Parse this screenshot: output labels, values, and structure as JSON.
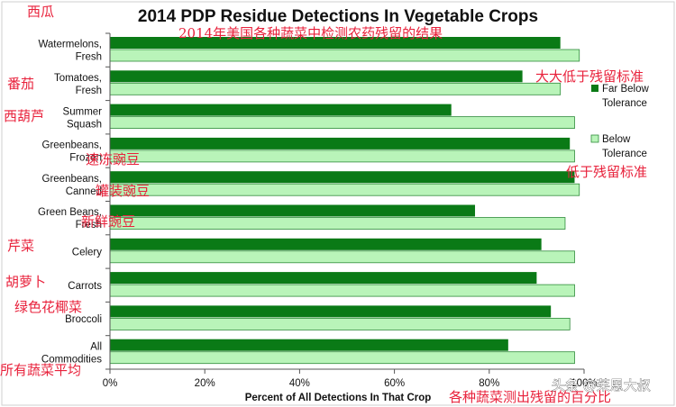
{
  "chart_data": {
    "type": "bar",
    "orientation": "horizontal",
    "title": "2014 PDP Residue Detections In Vegetable Crops",
    "xlabel": "Percent of All Detections In That Crop",
    "ylabel": "",
    "xlim": [
      0,
      100
    ],
    "x_ticks": [
      "0%",
      "20%",
      "40%",
      "60%",
      "80%",
      "100%"
    ],
    "categories": [
      [
        "Watermelons,",
        "Fresh"
      ],
      [
        "Tomatoes,",
        "Fresh"
      ],
      [
        "Summer",
        "Squash"
      ],
      [
        "Greenbeans,",
        "Frozen"
      ],
      [
        "Greenbeans,",
        "Canned"
      ],
      [
        "Green Beans,",
        "Fresh"
      ],
      [
        "Celery"
      ],
      [
        "Carrots"
      ],
      [
        "Broccoli"
      ],
      [
        "All",
        "Commodities"
      ]
    ],
    "series": [
      {
        "name": "Far Below Tolerance",
        "legend_lines": [
          "Far Below",
          "Tolerance"
        ],
        "color": "#0a7a16",
        "values": [
          95,
          87,
          72,
          97,
          98,
          77,
          91,
          90,
          93,
          84
        ]
      },
      {
        "name": "Below Tolerance",
        "legend_lines": [
          "Below",
          "Tolerance"
        ],
        "color": "#b9f4b9",
        "values": [
          99,
          95,
          98,
          98,
          99,
          96,
          98,
          98,
          97,
          98
        ]
      }
    ],
    "grid": false,
    "legend_position": "right"
  },
  "annotations": {
    "subtitle_cn": "2014年美国各种蔬菜中检测农药残留的结果",
    "legend1_cn": "大大低于残留标准",
    "legend2_cn": "低于残留标准",
    "xlabel_cn": "各种蔬菜测出残留的百分比",
    "labels_cn": [
      "西瓜",
      "番茄",
      "西葫芦",
      "速冻豌豆",
      "罐装豌豆",
      "新鲜豌豆",
      "芹菜",
      "胡萝卜",
      "绿色花椰菜",
      "所有蔬菜平均"
    ]
  },
  "watermark": "头条 @莱恩大叔",
  "colors": {
    "dark": "#0a7a16",
    "light": "#b9f4b9",
    "light_stroke": "#2e8b3a",
    "annotation": "#e8213b"
  }
}
